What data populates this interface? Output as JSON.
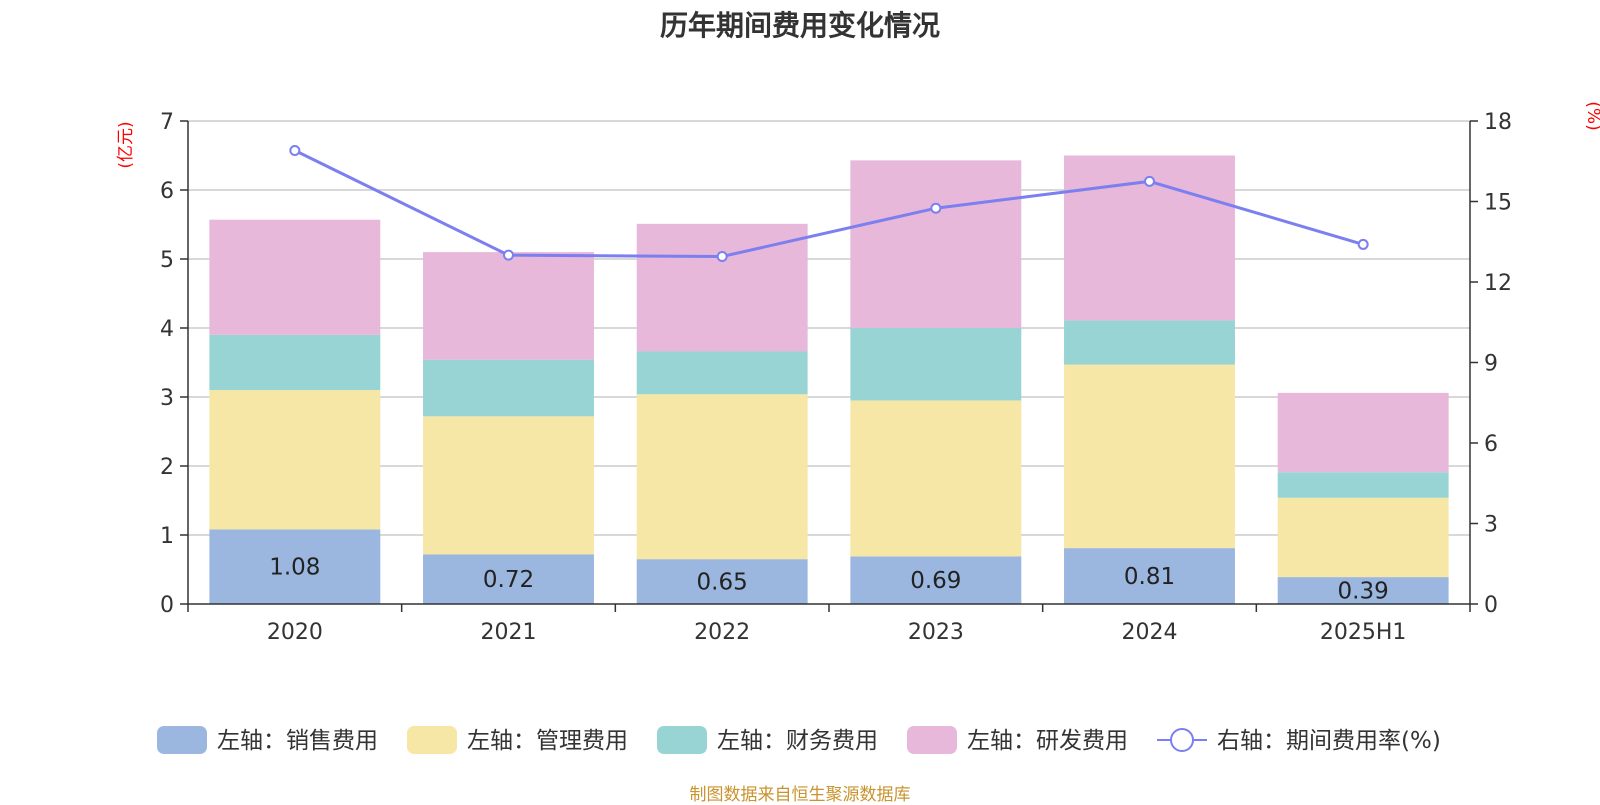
{
  "chart_data": {
    "type": "bar",
    "title": "历年期间费用变化情况",
    "left_axis_unit": "(亿元)",
    "right_axis_unit": "(%)",
    "categories": [
      "2020",
      "2021",
      "2022",
      "2023",
      "2024",
      "2025H1"
    ],
    "left_ylim": [
      0,
      7
    ],
    "left_yticks": [
      0,
      1,
      2,
      3,
      4,
      5,
      6,
      7
    ],
    "right_ylim": [
      0,
      18
    ],
    "right_yticks": [
      0,
      3,
      6,
      9,
      12,
      15,
      18
    ],
    "grid": true,
    "legend_position": "bottom",
    "stacked": true,
    "series": [
      {
        "name": "左轴：销售费用",
        "axis": "left",
        "type": "bar",
        "color": "#9bb7e0",
        "values": [
          1.08,
          0.72,
          0.65,
          0.69,
          0.81,
          0.39
        ],
        "labels": [
          "1.08",
          "0.72",
          "0.65",
          "0.69",
          "0.81",
          "0.39"
        ]
      },
      {
        "name": "左轴：管理费用",
        "axis": "left",
        "type": "bar",
        "color": "#f7e7a6",
        "values": [
          2.02,
          2.0,
          2.39,
          2.26,
          2.66,
          1.15
        ]
      },
      {
        "name": "左轴：财务费用",
        "axis": "left",
        "type": "bar",
        "color": "#98d4d4",
        "values": [
          0.8,
          0.82,
          0.62,
          1.05,
          0.64,
          0.37
        ]
      },
      {
        "name": "左轴：研发费用",
        "axis": "left",
        "type": "bar",
        "color": "#e7b8d9",
        "values": [
          1.67,
          1.56,
          1.85,
          2.43,
          2.39,
          1.15
        ]
      },
      {
        "name": "右轴：期间费用率(%)",
        "axis": "right",
        "type": "line",
        "color": "#7b7fef",
        "values": [
          16.9,
          13.0,
          12.95,
          14.75,
          15.75,
          13.4
        ]
      }
    ]
  },
  "source_note": "制图数据来自恒生聚源数据库"
}
